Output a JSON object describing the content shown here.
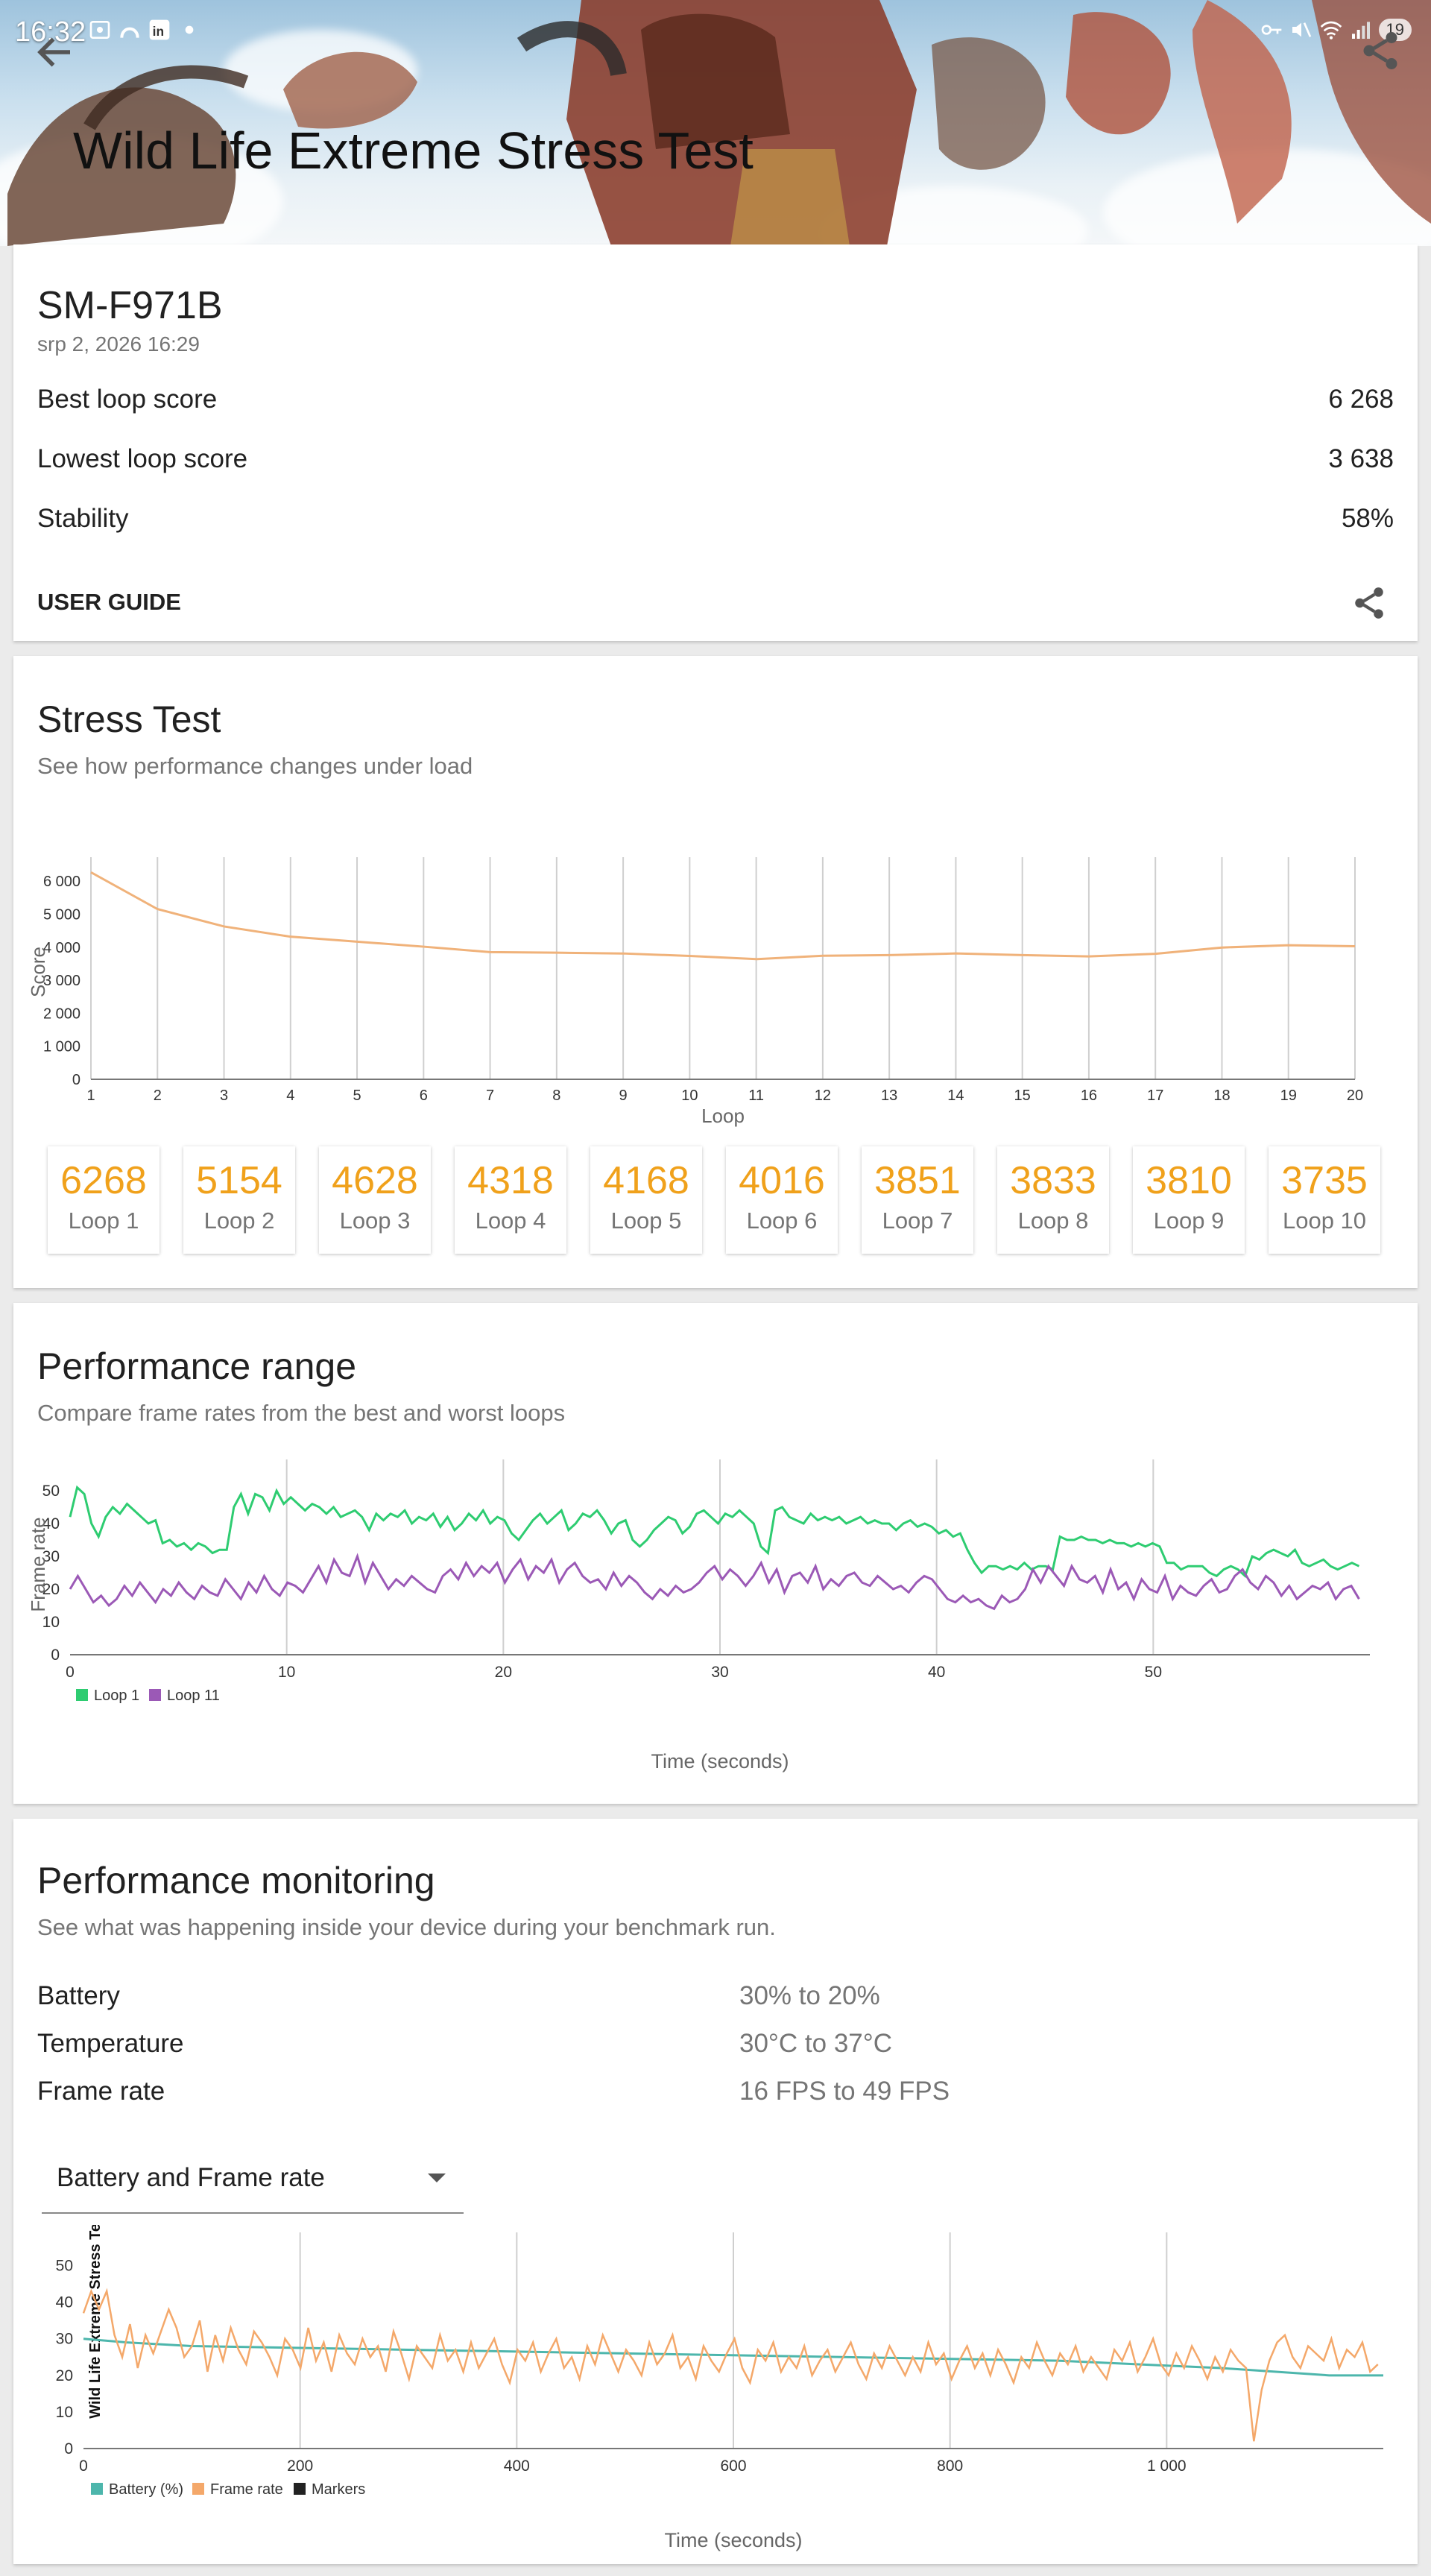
{
  "status": {
    "time": "16:32",
    "battery": "19"
  },
  "header": {
    "title": "Wild Life Extreme Stress Test"
  },
  "summary": {
    "device": "SM-F971B",
    "date": "srp 2, 2026 16:29",
    "rows": [
      {
        "label": "Best loop score",
        "value": "6 268"
      },
      {
        "label": "Lowest loop score",
        "value": "3 638"
      },
      {
        "label": "Stability",
        "value": "58%"
      }
    ],
    "user_guide": "USER GUIDE"
  },
  "stress": {
    "title": "Stress Test",
    "subtitle": "See how performance changes under load",
    "loops": [
      {
        "value": "6268",
        "label": "Loop 1"
      },
      {
        "value": "5154",
        "label": "Loop 2"
      },
      {
        "value": "4628",
        "label": "Loop 3"
      },
      {
        "value": "4318",
        "label": "Loop 4"
      },
      {
        "value": "4168",
        "label": "Loop 5"
      },
      {
        "value": "4016",
        "label": "Loop 6"
      },
      {
        "value": "3851",
        "label": "Loop 7"
      },
      {
        "value": "3833",
        "label": "Loop 8"
      },
      {
        "value": "3810",
        "label": "Loop 9"
      },
      {
        "value": "3735",
        "label": "Loop 10"
      }
    ]
  },
  "range": {
    "title": "Performance range",
    "subtitle": "Compare frame rates from the best and worst loops"
  },
  "monitoring": {
    "title": "Performance monitoring",
    "subtitle": "See what was happening inside your device during your benchmark run.",
    "rows": [
      {
        "label": "Battery",
        "value": "30% to 20%"
      },
      {
        "label": "Temperature",
        "value": "30°C to 37°C"
      },
      {
        "label": "Frame rate",
        "value": "16 FPS to 49 FPS"
      }
    ],
    "dropdown": "Battery and Frame rate"
  },
  "chart_data": [
    {
      "type": "line",
      "xlabel": "Loop",
      "ylabel": "Score",
      "x": [
        1,
        2,
        3,
        4,
        5,
        6,
        7,
        8,
        9,
        10,
        11,
        12,
        13,
        14,
        15,
        16,
        17,
        18,
        19,
        20
      ],
      "series": [
        {
          "values": [
            6268,
            5154,
            4628,
            4318,
            4168,
            4016,
            3851,
            3833,
            3810,
            3735,
            3638,
            3740,
            3760,
            3810,
            3760,
            3720,
            3800,
            3990,
            4060,
            4030
          ],
          "color": "#f0b27a"
        }
      ],
      "ylim": [
        0,
        6500
      ],
      "yticks": [
        "0",
        "1 000",
        "2 000",
        "3 000",
        "4 000",
        "5 000",
        "6 000"
      ],
      "grid": "vertical"
    },
    {
      "type": "line",
      "xlabel": "Time (seconds)",
      "ylabel": "Frame rate",
      "xlim": [
        0,
        60
      ],
      "ylim": [
        0,
        55
      ],
      "xticks": [
        "0",
        "10",
        "20",
        "30",
        "40",
        "50"
      ],
      "yticks": [
        "0",
        "10",
        "20",
        "30",
        "40",
        "50"
      ],
      "legend": "bottom-left",
      "series": [
        {
          "name": "Loop 1",
          "color": "#2ecc71",
          "values": [
            42,
            51,
            49,
            40,
            36,
            42,
            45,
            43,
            46,
            44,
            42,
            40,
            41,
            34,
            35,
            33,
            34,
            32,
            34,
            33,
            31,
            32,
            32,
            45,
            49,
            43,
            49,
            48,
            44,
            50,
            46,
            48,
            46,
            44,
            46,
            45,
            43,
            45,
            42,
            43,
            44,
            42,
            38,
            43,
            41,
            43,
            42,
            44,
            40,
            42,
            41,
            43,
            39,
            42,
            38,
            40,
            43,
            41,
            44,
            40,
            42,
            41,
            37,
            35,
            38,
            41,
            43,
            40,
            42,
            44,
            38,
            40,
            43,
            42,
            44,
            41,
            37,
            40,
            41,
            35,
            33,
            35,
            38,
            40,
            42,
            41,
            37,
            39,
            43,
            44,
            42,
            40,
            43,
            42,
            44,
            42,
            40,
            33,
            31,
            44,
            45,
            42,
            41,
            40,
            43,
            41,
            42,
            41,
            42,
            40,
            41,
            42,
            40,
            41,
            40,
            40,
            38,
            40,
            41,
            39,
            40,
            39,
            37,
            38,
            36,
            37,
            32,
            28,
            25,
            27,
            27,
            26,
            27,
            26,
            28,
            26,
            27,
            27,
            26,
            36,
            35,
            35,
            36,
            35,
            35,
            34,
            35,
            34,
            34,
            33,
            34,
            33,
            34,
            33,
            28,
            28,
            26,
            27,
            27,
            27,
            25,
            24,
            26,
            27,
            26,
            24,
            30,
            29,
            31,
            32,
            31,
            30,
            32,
            28,
            27,
            28,
            29,
            27,
            26,
            27,
            28,
            27
          ]
        },
        {
          "name": "Loop 11",
          "color": "#9b59b6",
          "values": [
            20,
            24,
            20,
            16,
            18,
            15,
            17,
            21,
            18,
            22,
            19,
            16,
            20,
            18,
            22,
            19,
            17,
            21,
            19,
            18,
            23,
            20,
            17,
            22,
            19,
            24,
            20,
            18,
            22,
            21,
            19,
            23,
            27,
            22,
            29,
            25,
            24,
            30,
            22,
            28,
            24,
            20,
            23,
            21,
            24,
            22,
            20,
            19,
            24,
            26,
            23,
            28,
            24,
            27,
            25,
            28,
            22,
            26,
            29,
            23,
            27,
            25,
            29,
            22,
            26,
            28,
            24,
            22,
            23,
            20,
            25,
            21,
            24,
            22,
            19,
            17,
            20,
            18,
            21,
            19,
            20,
            22,
            25,
            27,
            23,
            26,
            24,
            21,
            24,
            28,
            22,
            26,
            19,
            24,
            25,
            22,
            27,
            20,
            23,
            21,
            24,
            25,
            22,
            21,
            24,
            22,
            20,
            21,
            19,
            22,
            24,
            23,
            20,
            17,
            16,
            18,
            16,
            17,
            15,
            14,
            18,
            16,
            17,
            20,
            26,
            22,
            27,
            24,
            21,
            27,
            23,
            22,
            24,
            19,
            26,
            20,
            22,
            17,
            23,
            20,
            19,
            24,
            17,
            21,
            19,
            18,
            21,
            23,
            19,
            20,
            24,
            26,
            22,
            20,
            24,
            22,
            18,
            21,
            17,
            19,
            21,
            20,
            22,
            17,
            20,
            21,
            17
          ]
        }
      ]
    },
    {
      "type": "line",
      "xlabel": "Time (seconds)",
      "ylabel": "Wild Life Extreme Stress Test",
      "xlim": [
        0,
        1200
      ],
      "ylim": [
        0,
        55
      ],
      "xticks": [
        "0",
        "200",
        "400",
        "600",
        "800",
        "1 000"
      ],
      "yticks": [
        "0",
        "10",
        "20",
        "30",
        "40",
        "50"
      ],
      "legend": "bottom-left",
      "series": [
        {
          "name": "Battery (%)",
          "color": "#4db6ac",
          "x": [
            0,
            40,
            100,
            300,
            500,
            700,
            900,
            1050,
            1150,
            1200
          ],
          "values": [
            30,
            29,
            28,
            27,
            26,
            25,
            24,
            22,
            20,
            20
          ]
        },
        {
          "name": "Frame rate",
          "color": "#f4a86a",
          "values": [
            37,
            43,
            38,
            43,
            31,
            25,
            34,
            22,
            31,
            26,
            32,
            38,
            33,
            25,
            28,
            35,
            21,
            31,
            24,
            33,
            27,
            23,
            32,
            29,
            25,
            20,
            30,
            27,
            22,
            33,
            24,
            29,
            21,
            31,
            26,
            23,
            30,
            25,
            28,
            21,
            32,
            26,
            19,
            28,
            25,
            22,
            31,
            24,
            27,
            21,
            29,
            22,
            26,
            30,
            23,
            18,
            27,
            24,
            29,
            21,
            26,
            30,
            22,
            25,
            19,
            28,
            23,
            31,
            26,
            21,
            27,
            24,
            20,
            29,
            23,
            26,
            31,
            22,
            25,
            19,
            28,
            24,
            21,
            26,
            30,
            22,
            18,
            27,
            24,
            29,
            21,
            25,
            22,
            28,
            20,
            24,
            27,
            21,
            25,
            29,
            23,
            19,
            26,
            22,
            28,
            24,
            20,
            25,
            21,
            29,
            23,
            26,
            19,
            24,
            28,
            22,
            26,
            20,
            27,
            23,
            18,
            25,
            22,
            29,
            24,
            20,
            26,
            23,
            28,
            21,
            25,
            22,
            19,
            27,
            24,
            29,
            21,
            25,
            30,
            23,
            20,
            26,
            22,
            28,
            24,
            19,
            25,
            21,
            27,
            24,
            22,
            2,
            16,
            24,
            29,
            31,
            25,
            22,
            28,
            26,
            24,
            30,
            22,
            27,
            25,
            29,
            21,
            23
          ]
        },
        {
          "name": "Markers",
          "color": "#222222",
          "values": []
        }
      ]
    }
  ]
}
